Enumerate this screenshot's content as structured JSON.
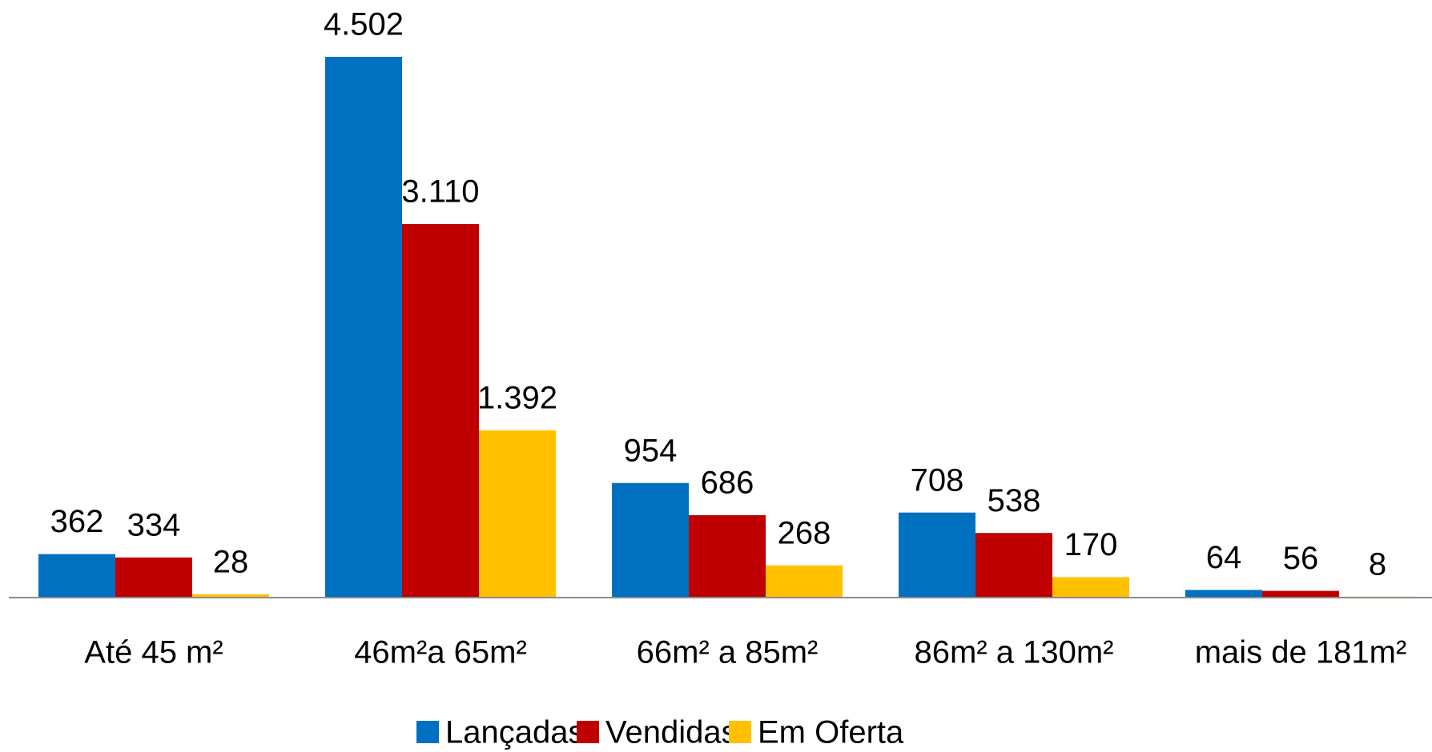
{
  "chart_data": {
    "type": "bar",
    "categories": [
      "Até  45 m²",
      "46m²a 65m²",
      "66m² a 85m²",
      "86m² a 130m²",
      "mais de 181m²"
    ],
    "series": [
      {
        "name": "Lançadas",
        "color": "#0070c0",
        "values": [
          362,
          4502,
          954,
          708,
          64
        ],
        "value_labels": [
          "362",
          "4.502",
          "954",
          "708",
          "64"
        ]
      },
      {
        "name": "Vendidas",
        "color": "#c00000",
        "values": [
          334,
          3110,
          686,
          538,
          56
        ],
        "value_labels": [
          "334",
          "3.110",
          "686",
          "538",
          "56"
        ]
      },
      {
        "name": "Em Oferta",
        "color": "#ffc000",
        "values": [
          28,
          1392,
          268,
          170,
          8
        ],
        "value_labels": [
          "28",
          "1.392",
          "268",
          "170",
          "8"
        ]
      }
    ],
    "legend": "bottom"
  }
}
